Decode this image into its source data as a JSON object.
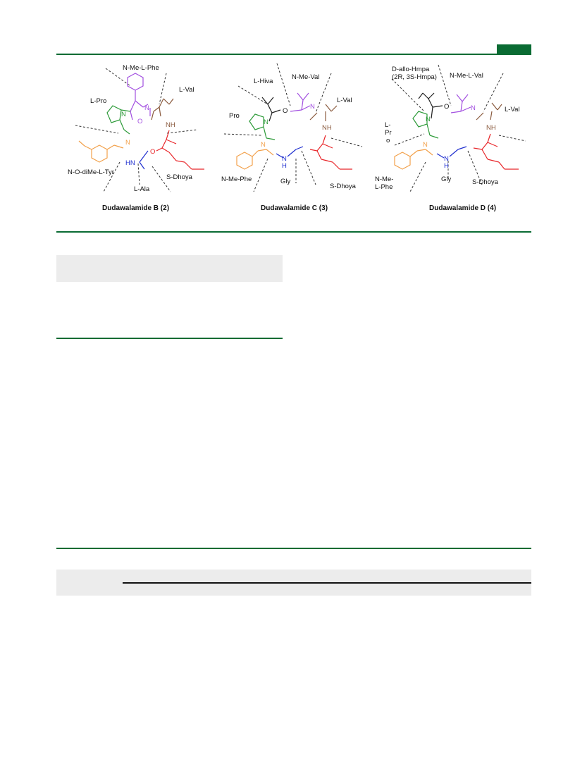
{
  "colors": {
    "header_green": "#0a6b33",
    "pro": "#2e9b3a",
    "phe": "#a24fe0",
    "val": "#8a5a3e",
    "dhoya": "#e8262a",
    "ala_gly": "#1f2fcf",
    "tyr_phe": "#f2a04a",
    "panel_gray": "#ececec"
  },
  "panel_b": {
    "caption": "Dudawalamide B (2)",
    "labels": {
      "n_me_phe": "N-Me-L-Phe",
      "pro": "L-Pro",
      "val": "L-Val",
      "tyr": "N-O-diMe-L-Tyr",
      "ala": "L-Ala",
      "dhoya": "S-Dhoya"
    },
    "atoms": {
      "n_pro": "N",
      "n_phe": "N",
      "nh_val": "NH",
      "hn_ala": "HN",
      "n_tyr": "N",
      "o": "O"
    }
  },
  "panel_c": {
    "caption": "Dudawalamide C  (3)",
    "labels": {
      "hiva": "L-Hiva",
      "n_me_val": "N-Me-Val",
      "val": "L-Val",
      "pro": "Pro",
      "n_me_phe": "N-Me-Phe",
      "gly": "Gly",
      "dhoya": "S-Dhoya"
    },
    "atoms": {
      "n_pro": "N",
      "n_val": "N",
      "nh_val": "NH",
      "n_phe": "N",
      "n_gly": "N",
      "h_gly": "H",
      "o": "O"
    }
  },
  "panel_d": {
    "caption": "Dudawalamide D  (4)",
    "labels": {
      "hmpa_1": "D-allo-Hmpa",
      "hmpa_2": "(2R, 3S-Hmpa)",
      "n_me_val": "N-Me-L-Val",
      "val": "L-Val",
      "pro_1": "L-",
      "pro_2": "Pr",
      "pro_3": "o",
      "phe_1": "N-Me-",
      "phe_2": "L-Phe",
      "gly": "Gly",
      "dhoya": "S-Dhoya"
    },
    "atoms": {
      "n_pro": "N",
      "n_val": "N",
      "nh_val": "NH",
      "n_phe": "N",
      "n_gly": "N",
      "h_gly": "H",
      "o": "O"
    }
  }
}
